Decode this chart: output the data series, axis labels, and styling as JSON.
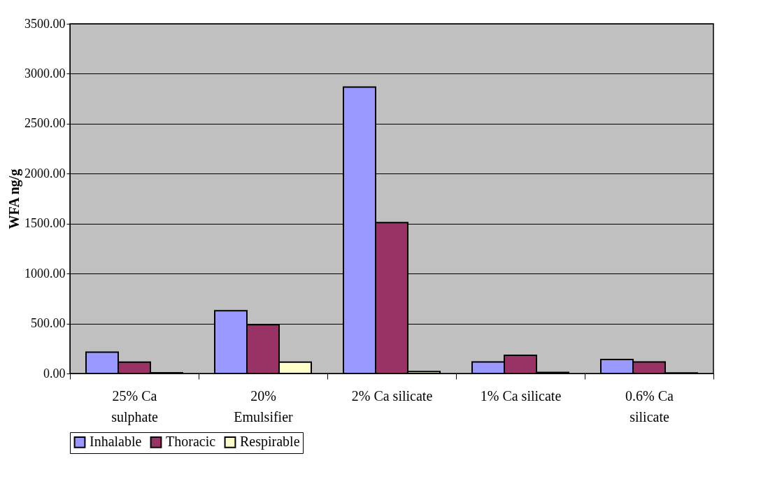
{
  "chart_data": {
    "type": "bar",
    "ylabel": "WFA ng/g",
    "categories": [
      "25% Ca\nsulphate",
      "20%\nEmulsifier",
      "2% Ca silicate",
      "1% Ca silicate",
      "0.6% Ca\nsilicate"
    ],
    "series": [
      {
        "name": "Inhalable",
        "color": "#9999ff",
        "values": [
          214,
          628,
          2866,
          116,
          140
        ]
      },
      {
        "name": "Thoracic",
        "color": "#993366",
        "values": [
          114,
          488,
          1510,
          182,
          116
        ]
      },
      {
        "name": "Respirable",
        "color": "#ffffcc",
        "values": [
          7,
          114,
          20,
          10,
          5
        ]
      }
    ],
    "ylim": [
      0,
      3500
    ],
    "yticks": [
      {
        "value": 0,
        "label": "0.00"
      },
      {
        "value": 500,
        "label": "500.00"
      },
      {
        "value": 1000,
        "label": "1000.00"
      },
      {
        "value": 1500,
        "label": "1500.00"
      },
      {
        "value": 2000,
        "label": "2000.00"
      },
      {
        "value": 2500,
        "label": "2500.00"
      },
      {
        "value": 3000,
        "label": "3000.00"
      },
      {
        "value": 3500,
        "label": "3500.00"
      }
    ],
    "grid": "y",
    "legend": "bottom"
  }
}
